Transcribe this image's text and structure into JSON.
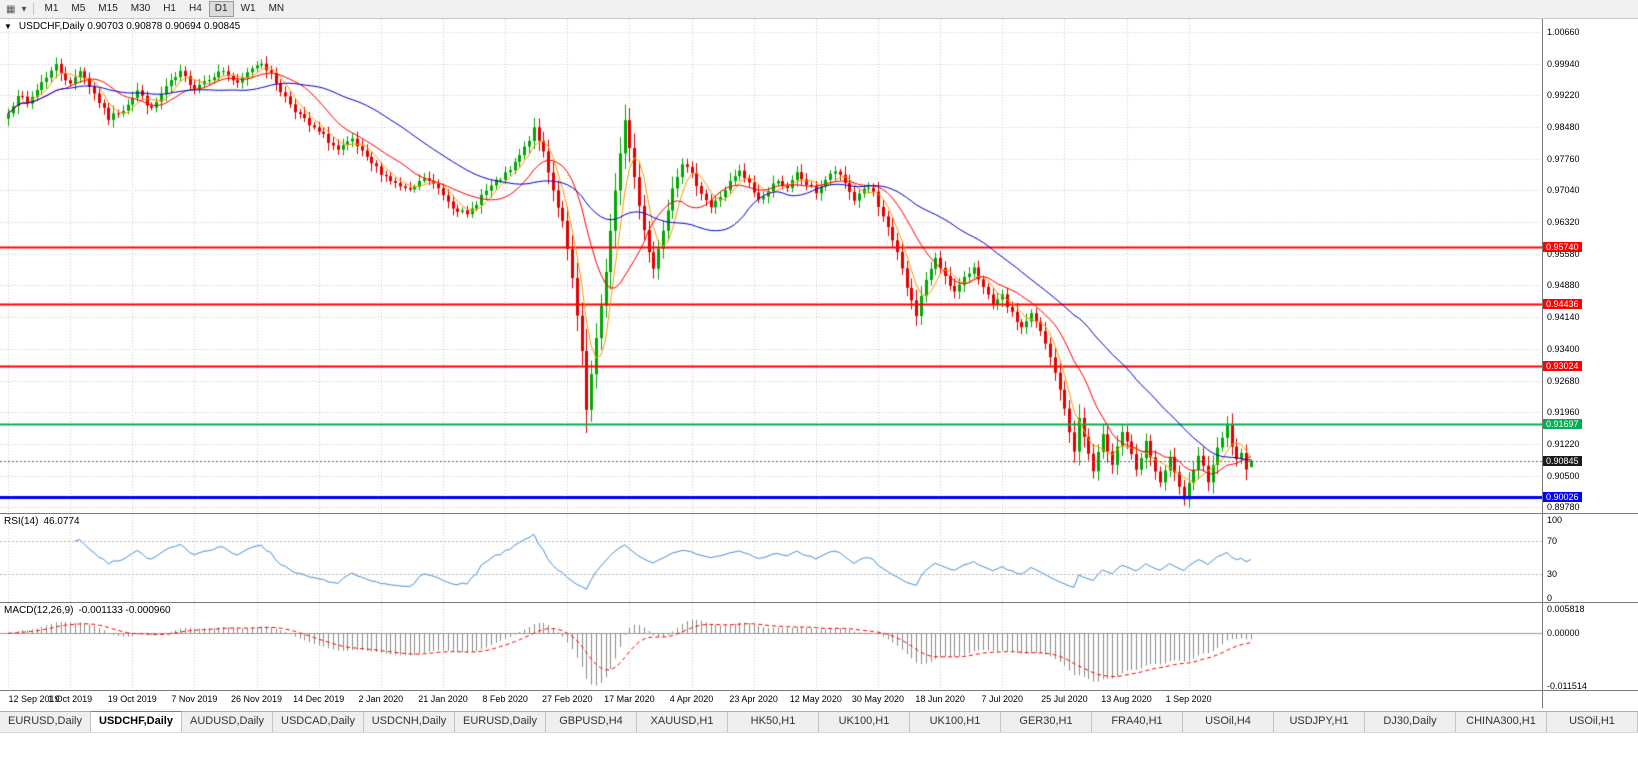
{
  "toolbar": {
    "timeframes": [
      {
        "label": "M1",
        "active": false
      },
      {
        "label": "M5",
        "active": false
      },
      {
        "label": "M15",
        "active": false
      },
      {
        "label": "M30",
        "active": false
      },
      {
        "label": "H1",
        "active": false
      },
      {
        "label": "H4",
        "active": false
      },
      {
        "label": "D1",
        "active": true
      },
      {
        "label": "W1",
        "active": false
      },
      {
        "label": "MN",
        "active": false
      }
    ]
  },
  "chart": {
    "title_line": "USDCHF,Daily 0.90703 0.90878 0.90694 0.90845",
    "symbol": "USDCHF",
    "period": "Daily"
  },
  "indicators": {
    "rsi": {
      "label": "RSI(14)",
      "value_label": "46.0774",
      "levels": [
        {
          "text": "100",
          "value": 100
        },
        {
          "text": "70",
          "value": 70
        },
        {
          "text": "30",
          "value": 30
        },
        {
          "text": "0",
          "value": 0
        }
      ]
    },
    "macd": {
      "label": "MACD(12,26,9)",
      "values_label": "-0.001133 -0.000960"
    }
  },
  "tabs": {
    "items": [
      {
        "label": "EURUSD,Daily",
        "active": false
      },
      {
        "label": "USDCHF,Daily",
        "active": true
      },
      {
        "label": "AUDUSD,Daily",
        "active": false
      },
      {
        "label": "USDCAD,Daily",
        "active": false
      },
      {
        "label": "USDCNH,Daily",
        "active": false
      },
      {
        "label": "EURUSD,Daily",
        "active": false
      },
      {
        "label": "GBPUSD,H4",
        "active": false
      },
      {
        "label": "XAUUSD,H1",
        "active": false
      },
      {
        "label": "HK50,H1",
        "active": false
      },
      {
        "label": "UK100,H1",
        "active": false
      },
      {
        "label": "UK100,H1",
        "active": false
      },
      {
        "label": "GER30,H1",
        "active": false
      },
      {
        "label": "FRA40,H1",
        "active": false
      },
      {
        "label": "USOil,H4",
        "active": false
      },
      {
        "label": "USDJPY,H1",
        "active": false
      },
      {
        "label": "DJ30,Daily",
        "active": false
      },
      {
        "label": "CHINA300,H1",
        "active": false
      },
      {
        "label": "USOil,H1",
        "active": false
      }
    ]
  },
  "colors": {
    "bull": "#00a800",
    "bear": "#e00000",
    "ma_fast": "#ff9900",
    "ma_mid": "#ff0000",
    "ma_slow": "#0000cc",
    "rsi_line": "#4a90d2",
    "rsi_level": "#b8b8b8",
    "macd_hist": "#8c8c8c",
    "macd_signal": "#ff0000",
    "grid": "#cdcdcd",
    "current_line": "#666666"
  },
  "chart_data": {
    "type": "candlestick",
    "symbol": "USDCHF",
    "timeframe": "Daily",
    "current": {
      "open": 0.90703,
      "high": 0.90878,
      "low": 0.90694,
      "close": 0.90845
    },
    "ylim": [
      0.8965,
      1.0096
    ],
    "num_days": 261,
    "ma_periods": {
      "fast": 5,
      "mid": 13,
      "slow": 34
    },
    "rsi_period": 14,
    "macd_params": [
      12,
      26,
      9
    ],
    "price_ticks": [
      {
        "text": "1.00660",
        "value": 1.0066
      },
      {
        "text": "0.99940",
        "value": 0.9994
      },
      {
        "text": "0.99220",
        "value": 0.9922
      },
      {
        "text": "0.98480",
        "value": 0.9848
      },
      {
        "text": "0.97760",
        "value": 0.9776
      },
      {
        "text": "0.97040",
        "value": 0.9704
      },
      {
        "text": "0.96320",
        "value": 0.9632
      },
      {
        "text": "0.95580",
        "value": 0.9558
      },
      {
        "text": "0.94880",
        "value": 0.9488
      },
      {
        "text": "0.94140",
        "value": 0.9414
      },
      {
        "text": "0.93400",
        "value": 0.934
      },
      {
        "text": "0.92680",
        "value": 0.9268
      },
      {
        "text": "0.91960",
        "value": 0.9196
      },
      {
        "text": "0.91220",
        "value": 0.9122
      },
      {
        "text": "0.90500",
        "value": 0.905
      },
      {
        "text": "0.89780",
        "value": 0.8978
      }
    ],
    "hlines": [
      {
        "value": 0.9574,
        "label": "0.95740",
        "color": "#ff0000",
        "width": 2
      },
      {
        "value": 0.94436,
        "label": "0.94436",
        "color": "#ff0000",
        "width": 2
      },
      {
        "value": 0.93024,
        "label": "0.93024",
        "color": "#ff0000",
        "width": 2
      },
      {
        "value": 0.91697,
        "label": "0.91697",
        "color": "#00b050",
        "width": 2
      },
      {
        "value": 0.90026,
        "label": "0.90026",
        "color": "#0000ff",
        "width": 3
      }
    ],
    "current_badge": {
      "text": "0.90845",
      "value": 0.90845,
      "color": "#1a1a1a"
    },
    "date_ticks": [
      {
        "label": "12 Sep 2019",
        "day": 0
      },
      {
        "label": "1 Oct 2019",
        "day": 13
      },
      {
        "label": "19 Oct 2019",
        "day": 26
      },
      {
        "label": "7 Nov 2019",
        "day": 39
      },
      {
        "label": "26 Nov 2019",
        "day": 52
      },
      {
        "label": "14 Dec 2019",
        "day": 65
      },
      {
        "label": "2 Jan 2020",
        "day": 78
      },
      {
        "label": "21 Jan 2020",
        "day": 91
      },
      {
        "label": "8 Feb 2020",
        "day": 104
      },
      {
        "label": "27 Feb 2020",
        "day": 117
      },
      {
        "label": "17 Mar 2020",
        "day": 130
      },
      {
        "label": "4 Apr 2020",
        "day": 143
      },
      {
        "label": "23 Apr 2020",
        "day": 156
      },
      {
        "label": "12 May 2020",
        "day": 169
      },
      {
        "label": "30 May 2020",
        "day": 182
      },
      {
        "label": "18 Jun 2020",
        "day": 195
      },
      {
        "label": "7 Jul 2020",
        "day": 208
      },
      {
        "label": "25 Jul 2020",
        "day": 221
      },
      {
        "label": "13 Aug 2020",
        "day": 234
      },
      {
        "label": "1 Sep 2020",
        "day": 247
      }
    ],
    "macd_axis": [
      {
        "text": "0.005818",
        "value": 0.005818
      },
      {
        "text": "0.00000",
        "value": 0.0
      },
      {
        "text": "-0.011514",
        "value": -0.011514
      }
    ],
    "price_anchors": [
      [
        0,
        0.988
      ],
      [
        2,
        0.9925
      ],
      [
        4,
        0.99
      ],
      [
        7,
        0.9952
      ],
      [
        10,
        0.999
      ],
      [
        13,
        0.9945
      ],
      [
        15,
        0.998
      ],
      [
        18,
        0.9925
      ],
      [
        21,
        0.9868
      ],
      [
        24,
        0.989
      ],
      [
        27,
        0.9932
      ],
      [
        30,
        0.9888
      ],
      [
        33,
        0.994
      ],
      [
        36,
        0.9972
      ],
      [
        39,
        0.994
      ],
      [
        42,
        0.9962
      ],
      [
        45,
        0.9978
      ],
      [
        48,
        0.9945
      ],
      [
        51,
        0.9985
      ],
      [
        53,
        0.9998
      ],
      [
        55,
        0.9968
      ],
      [
        57,
        0.9932
      ],
      [
        60,
        0.9888
      ],
      [
        63,
        0.9852
      ],
      [
        66,
        0.9828
      ],
      [
        69,
        0.9795
      ],
      [
        72,
        0.9818
      ],
      [
        75,
        0.9775
      ],
      [
        78,
        0.9745
      ],
      [
        81,
        0.9718
      ],
      [
        84,
        0.97
      ],
      [
        87,
        0.9732
      ],
      [
        90,
        0.9708
      ],
      [
        93,
        0.9668
      ],
      [
        96,
        0.9645
      ],
      [
        99,
        0.9692
      ],
      [
        102,
        0.9722
      ],
      [
        105,
        0.9748
      ],
      [
        108,
        0.98
      ],
      [
        110,
        0.9842
      ],
      [
        112,
        0.9792
      ],
      [
        114,
        0.9705
      ],
      [
        116,
        0.963
      ],
      [
        118,
        0.95
      ],
      [
        120,
        0.933
      ],
      [
        121,
        0.92
      ],
      [
        123,
        0.936
      ],
      [
        125,
        0.952
      ],
      [
        127,
        0.97
      ],
      [
        129,
        0.9868
      ],
      [
        130,
        0.98
      ],
      [
        132,
        0.9668
      ],
      [
        134,
        0.9565
      ],
      [
        135,
        0.9525
      ],
      [
        137,
        0.9615
      ],
      [
        139,
        0.9712
      ],
      [
        141,
        0.9768
      ],
      [
        143,
        0.9738
      ],
      [
        145,
        0.97
      ],
      [
        147,
        0.9665
      ],
      [
        149,
        0.969
      ],
      [
        151,
        0.9722
      ],
      [
        153,
        0.9745
      ],
      [
        155,
        0.9718
      ],
      [
        157,
        0.9682
      ],
      [
        159,
        0.9702
      ],
      [
        161,
        0.973
      ],
      [
        163,
        0.9705
      ],
      [
        165,
        0.9742
      ],
      [
        167,
        0.9718
      ],
      [
        169,
        0.97
      ],
      [
        171,
        0.9728
      ],
      [
        173,
        0.9748
      ],
      [
        175,
        0.972
      ],
      [
        177,
        0.9682
      ],
      [
        179,
        0.971
      ],
      [
        181,
        0.97
      ],
      [
        182,
        0.966
      ],
      [
        184,
        0.962
      ],
      [
        186,
        0.956
      ],
      [
        188,
        0.948
      ],
      [
        190,
        0.942
      ],
      [
        192,
        0.95
      ],
      [
        194,
        0.9545
      ],
      [
        196,
        0.951
      ],
      [
        198,
        0.947
      ],
      [
        200,
        0.95
      ],
      [
        202,
        0.953
      ],
      [
        204,
        0.948
      ],
      [
        206,
        0.944
      ],
      [
        208,
        0.946
      ],
      [
        210,
        0.942
      ],
      [
        212,
        0.939
      ],
      [
        214,
        0.942
      ],
      [
        216,
        0.938
      ],
      [
        218,
        0.932
      ],
      [
        220,
        0.925
      ],
      [
        221,
        0.92
      ],
      [
        222,
        0.915
      ],
      [
        223,
        0.911
      ],
      [
        224,
        0.918
      ],
      [
        225,
        0.914
      ],
      [
        226,
        0.91
      ],
      [
        227,
        0.906
      ],
      [
        228,
        0.91
      ],
      [
        229,
        0.914
      ],
      [
        230,
        0.911
      ],
      [
        231,
        0.908
      ],
      [
        232,
        0.912
      ],
      [
        233,
        0.915
      ],
      [
        234,
        0.913
      ],
      [
        235,
        0.9095
      ],
      [
        236,
        0.906
      ],
      [
        237,
        0.909
      ],
      [
        238,
        0.9125
      ],
      [
        239,
        0.9095
      ],
      [
        240,
        0.906
      ],
      [
        241,
        0.903
      ],
      [
        242,
        0.906
      ],
      [
        243,
        0.909
      ],
      [
        244,
        0.906
      ],
      [
        245,
        0.902
      ],
      [
        246,
        0.899
      ],
      [
        247,
        0.903
      ],
      [
        248,
        0.907
      ],
      [
        249,
        0.91
      ],
      [
        250,
        0.907
      ],
      [
        251,
        0.904
      ],
      [
        252,
        0.908
      ],
      [
        253,
        0.911
      ],
      [
        254,
        0.914
      ],
      [
        255,
        0.9165
      ],
      [
        256,
        0.912
      ],
      [
        257,
        0.9085
      ],
      [
        258,
        0.91
      ],
      [
        259,
        0.907
      ],
      [
        260,
        0.90845
      ]
    ]
  }
}
